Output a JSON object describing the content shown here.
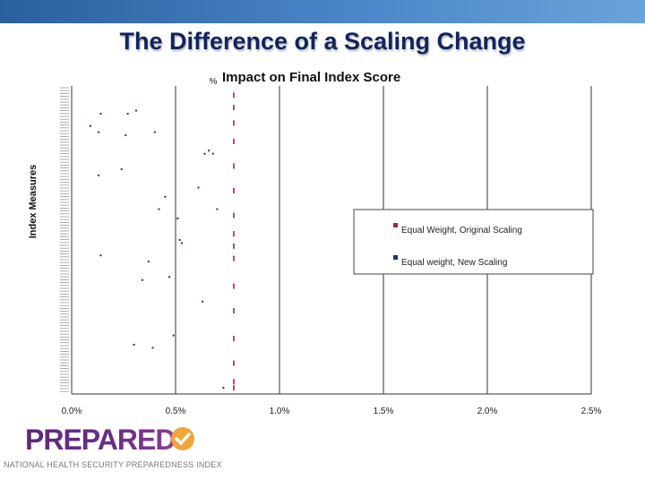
{
  "slide": {
    "title": "The Difference of a Scaling Change"
  },
  "logo": {
    "word": "PREPARED",
    "subtitle": "NATIONAL HEALTH SECURITY PREPAREDNESS INDEX"
  },
  "colors": {
    "accent_bar": "#3a74b8",
    "title": "#11245e",
    "series1": "#b0202e",
    "series2": "#2a2f7a",
    "logo": "#6a2e8a",
    "check": "#f2a43a"
  },
  "chart_data": {
    "type": "scatter",
    "title": "Impact on Final Index Score",
    "title_prefix": "%",
    "xlabel": "",
    "ylabel": "Index Measures",
    "xlim": [
      0,
      0.025
    ],
    "x_ticks": [
      "0.0%",
      "0.5%",
      "1.0%",
      "1.5%",
      "2.0%",
      "2.5%"
    ],
    "grid": "vertical",
    "legend_position": "center-right",
    "series": [
      {
        "name": "Equal Weight, Original Scaling",
        "color": "#b0202e",
        "x": [
          0.0078,
          0.0078,
          0.0078,
          0.0078,
          0.0078,
          0.0078,
          0.0078,
          0.0078,
          0.0078,
          0.0078,
          0.0078,
          0.0078,
          0.0078,
          0.0078,
          0.0078,
          0.0078
        ],
        "y": [
          0.02,
          0.04,
          0.1,
          0.18,
          0.27,
          0.35,
          0.44,
          0.48,
          0.52,
          0.58,
          0.66,
          0.74,
          0.82,
          0.88,
          0.93,
          0.97
        ]
      },
      {
        "name": "Equal weight, New Scaling",
        "color": "#2a2f7a",
        "x": [
          0.0014,
          0.0027,
          0.0031,
          0.0009,
          0.0013,
          0.0026,
          0.004,
          0.0064,
          0.0066,
          0.0068,
          0.0013,
          0.0024,
          0.0061,
          0.0045,
          0.0042,
          0.007,
          0.0051,
          0.0052,
          0.0053,
          0.0014,
          0.0037,
          0.0047,
          0.0034,
          0.0063,
          0.0049,
          0.003,
          0.0039,
          0.0073
        ],
        "y": [
          0.91,
          0.91,
          0.92,
          0.87,
          0.85,
          0.84,
          0.85,
          0.78,
          0.79,
          0.78,
          0.71,
          0.73,
          0.67,
          0.64,
          0.6,
          0.6,
          0.57,
          0.5,
          0.49,
          0.45,
          0.43,
          0.38,
          0.37,
          0.3,
          0.19,
          0.16,
          0.15,
          0.02
        ]
      }
    ]
  }
}
